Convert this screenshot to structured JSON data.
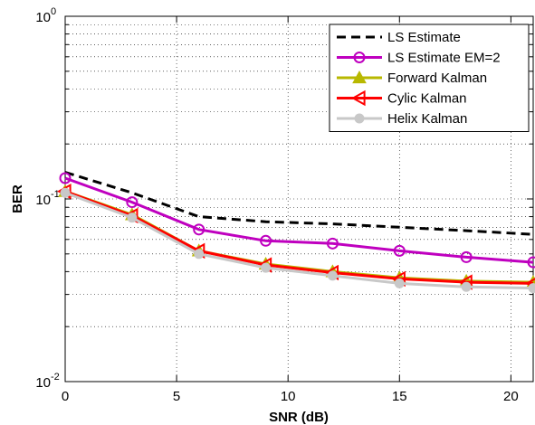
{
  "chart_data": {
    "type": "line",
    "title": "",
    "xlabel": "SNR (dB)",
    "ylabel": "BER",
    "xlim": [
      0,
      21
    ],
    "ylim": [
      0.01,
      1
    ],
    "y_scale": "log",
    "grid": true,
    "legend_position": "top-right",
    "x_ticks": [
      0,
      5,
      10,
      15,
      20
    ],
    "x_tick_labels": [
      "0",
      "5",
      "10",
      "15",
      "20"
    ],
    "y_ticks": [
      0.01,
      0.1,
      1
    ],
    "y_tick_labels": [
      {
        "base": "10",
        "exp": "-2"
      },
      {
        "base": "10",
        "exp": "-1"
      },
      {
        "base": "10",
        "exp": "0"
      }
    ],
    "series": [
      {
        "name": "LS Estimate",
        "color": "#000000",
        "dash": "dashed",
        "marker": "none",
        "x": [
          0,
          3,
          6,
          9,
          12,
          15,
          18,
          21
        ],
        "y": [
          0.14,
          0.108,
          0.08,
          0.075,
          0.073,
          0.07,
          0.067,
          0.064
        ]
      },
      {
        "name": "LS Estimate EM=2",
        "color": "#bf00bf",
        "dash": "solid",
        "marker": "circle",
        "x": [
          0,
          3,
          6,
          9,
          12,
          15,
          18,
          21
        ],
        "y": [
          0.13,
          0.096,
          0.068,
          0.059,
          0.057,
          0.052,
          0.048,
          0.045
        ]
      },
      {
        "name": "Forward Kalman",
        "color": "#b8b800",
        "dash": "solid",
        "marker": "triangle-up",
        "x": [
          0,
          3,
          6,
          9,
          12,
          15,
          18,
          21
        ],
        "y": [
          0.11,
          0.082,
          0.052,
          0.044,
          0.04,
          0.037,
          0.0355,
          0.035
        ]
      },
      {
        "name": "Cylic Kalman",
        "color": "#ff0000",
        "dash": "solid",
        "marker": "triangle-left",
        "x": [
          0,
          3,
          6,
          9,
          12,
          15,
          18,
          21
        ],
        "y": [
          0.11,
          0.081,
          0.052,
          0.0435,
          0.0395,
          0.0365,
          0.035,
          0.0345
        ]
      },
      {
        "name": "Helix Kalman",
        "color": "#c8c8c8",
        "dash": "solid",
        "marker": "circle-filled",
        "x": [
          0,
          3,
          6,
          9,
          12,
          15,
          18,
          21
        ],
        "y": [
          0.108,
          0.079,
          0.05,
          0.042,
          0.038,
          0.0345,
          0.033,
          0.0325
        ]
      }
    ]
  }
}
